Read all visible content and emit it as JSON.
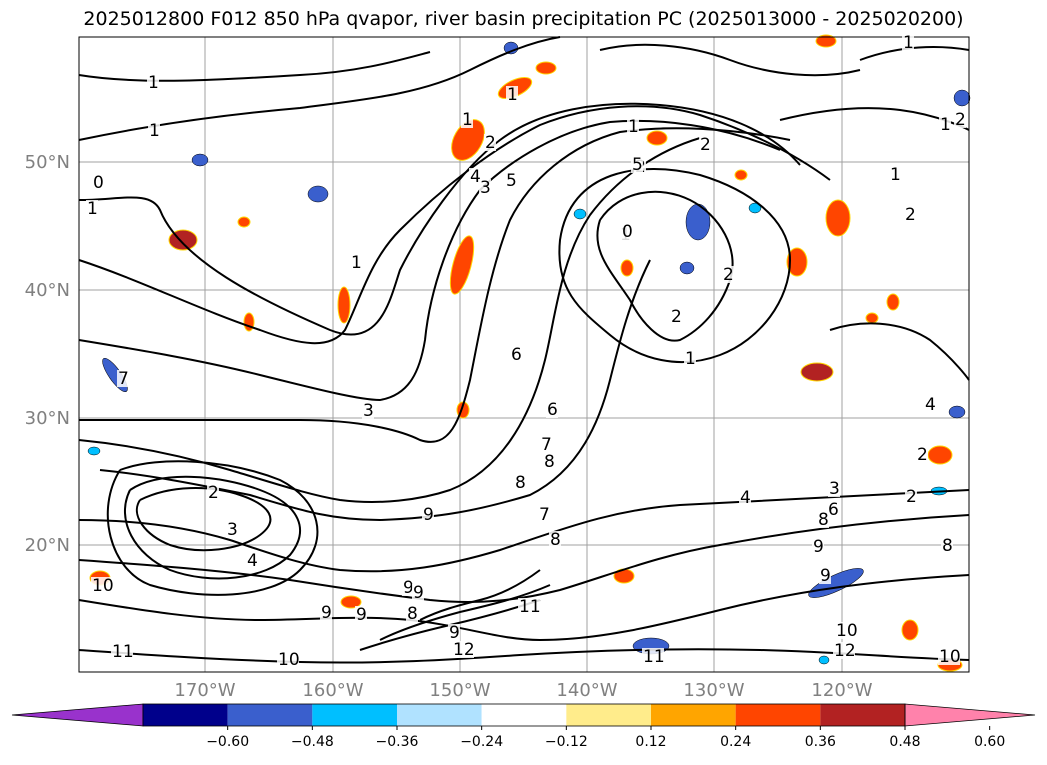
{
  "title": "2025012800 F012 850 hPa qvapor, river basin precipitation PC (2025013000 - 2025020200)",
  "map": {
    "lat_labels": [
      "50°N",
      "40°N",
      "30°N",
      "20°N"
    ],
    "lon_labels": [
      "170°W",
      "160°W",
      "150°W",
      "140°W",
      "130°W",
      "120°W"
    ],
    "contour_labels": [
      "1",
      "1",
      "1",
      "0",
      "1",
      "2",
      "1",
      "1",
      "2",
      "3",
      "4",
      "5",
      "1",
      "5",
      "2",
      "1",
      "0",
      "2",
      "1",
      "2",
      "2",
      "1",
      "1",
      "1",
      "3",
      "6",
      "6",
      "7",
      "8",
      "8",
      "7",
      "8",
      "6",
      "4",
      "3",
      "2",
      "8",
      "9",
      "2",
      "3",
      "4",
      "9",
      "9",
      "10",
      "9",
      "8",
      "9",
      "9",
      "11",
      "9",
      "12",
      "10",
      "11",
      "10",
      "12",
      "11",
      "10",
      "8",
      "7",
      "9",
      "2",
      "4",
      "2",
      "3"
    ]
  },
  "colorbar": {
    "ticks": [
      "−0.60",
      "−0.48",
      "−0.36",
      "−0.24",
      "−0.12",
      "0.12",
      "0.24",
      "0.36",
      "0.48",
      "0.60"
    ],
    "colors": [
      "#9932cc",
      "#00008b",
      "#3a5fcd",
      "#00bfff",
      "#b0e2ff",
      "#ffffff",
      "#ffec8b",
      "#ffa500",
      "#ff4500",
      "#b22222",
      "#ff82ab"
    ]
  }
}
